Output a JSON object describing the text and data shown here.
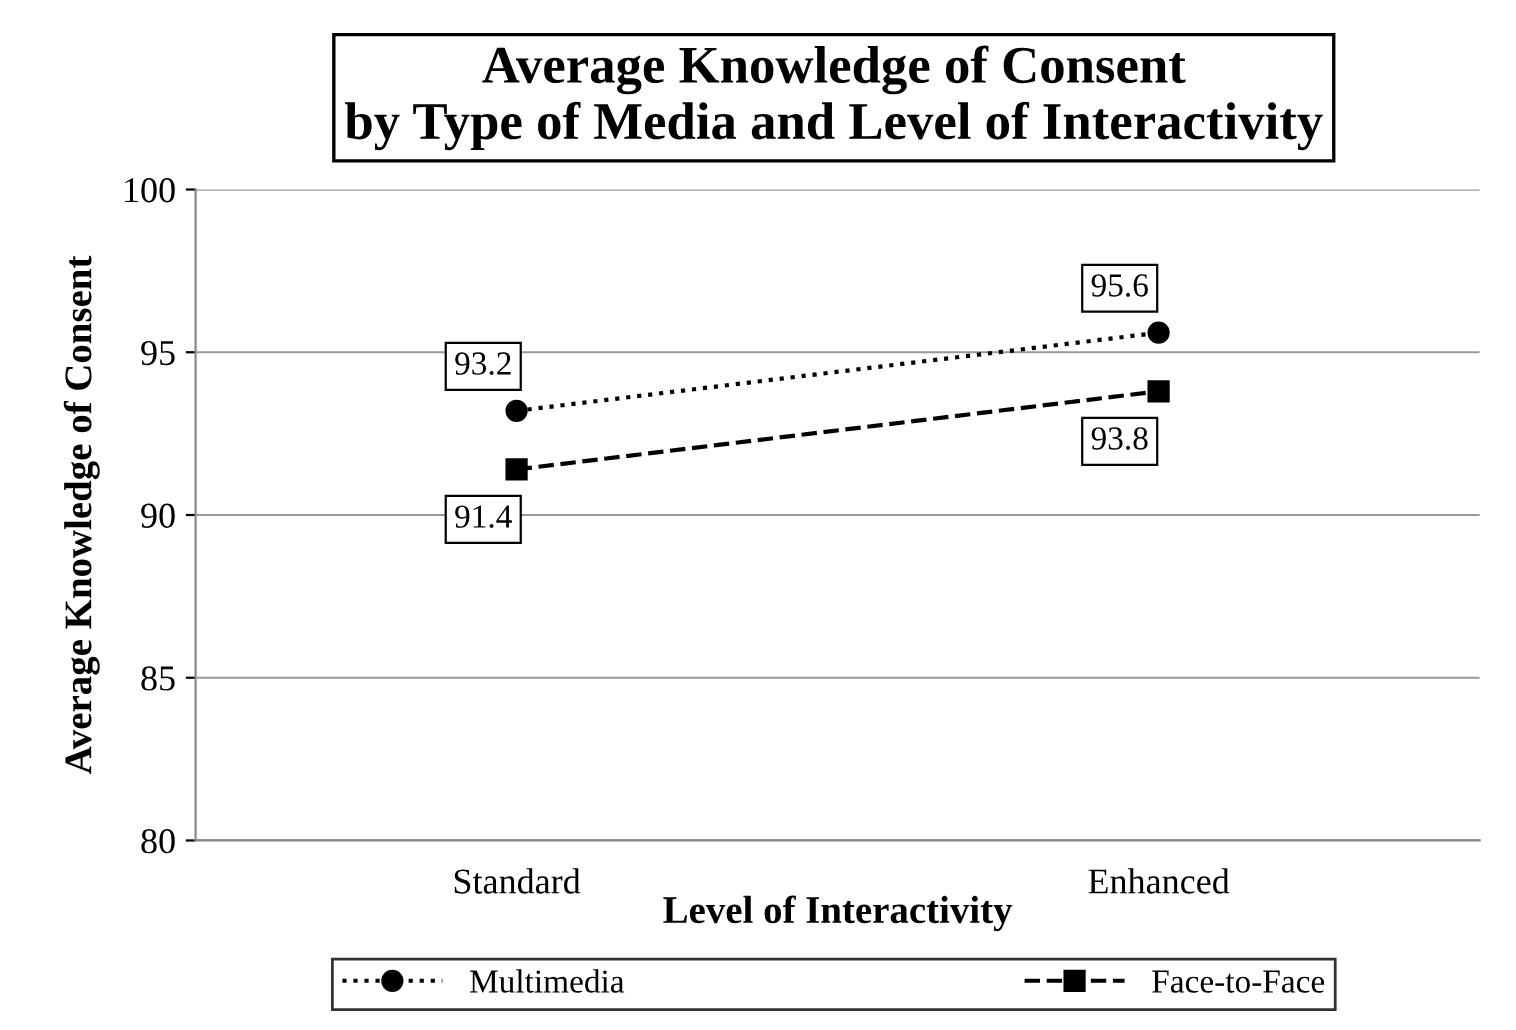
{
  "chart_data": {
    "type": "line",
    "title": "Average Knowledge of Consent\nby Type of Media and Level of Interactivity",
    "xlabel": "Level of Interactivity",
    "ylabel": "Average Knowledge of Consent",
    "categories": [
      "Standard",
      "Enhanced"
    ],
    "series": [
      {
        "name": "Multimedia",
        "color": "#000000",
        "values": [
          93.2,
          95.6
        ],
        "marker": "circle",
        "line_style": "dotted"
      },
      {
        "name": "Face-to-Face",
        "color": "#000000",
        "values": [
          91.4,
          93.8
        ],
        "marker": "square",
        "line_style": "dashed"
      }
    ],
    "ylim": [
      80,
      100
    ],
    "yticks": [
      80,
      85,
      90,
      95,
      100
    ],
    "grid": "y",
    "legend": "bottom",
    "data_labels": true
  }
}
